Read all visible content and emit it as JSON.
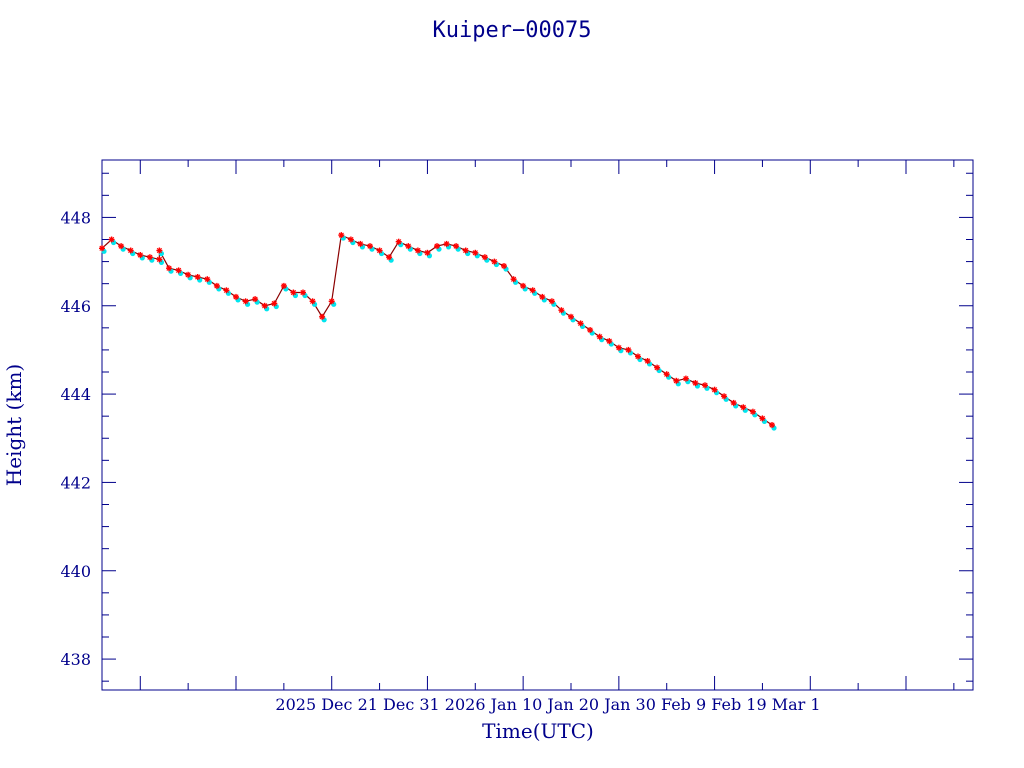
{
  "chart_data": {
    "type": "line",
    "title": "Kuiper−00075",
    "xlabel": "Time(UTC)",
    "ylabel": "Height (km)",
    "ylim": [
      437.3,
      449.3
    ],
    "xlim": [
      "2025-12-07",
      "2026-03-08"
    ],
    "y_ticks": [
      438,
      440,
      442,
      444,
      446,
      448
    ],
    "y_tick_labels": [
      "438",
      "440",
      "442",
      "444",
      "446",
      "448"
    ],
    "x_ticks": [
      "2025-12-11",
      "2025-12-21",
      "2025-12-31",
      "2026-01-10",
      "2026-01-20",
      "2026-01-30",
      "2026-02-09",
      "2026-02-19",
      "2026-03-01"
    ],
    "x_tick_labels": [
      "2025 Dec 21 Dec 31 2026 Jan 10 Jan 20 Jan 30 Feb 9 Feb 19 Mar 1"
    ],
    "grid": false,
    "colors": {
      "axis": "#00008b",
      "line": "#8b0000",
      "marker_primary": "#ff0000",
      "marker_secondary": "#00e5ee"
    },
    "series": [
      {
        "x": [
          "2025-12-07",
          "2025-12-08",
          "2025-12-09",
          "2025-12-10",
          "2025-12-11",
          "2025-12-12",
          "2025-12-13",
          "2025-12-13",
          "2025-12-14",
          "2025-12-15",
          "2025-12-16",
          "2025-12-17",
          "2025-12-18",
          "2025-12-19",
          "2025-12-20",
          "2025-12-21",
          "2025-12-22",
          "2025-12-23",
          "2025-12-24",
          "2025-12-25",
          "2025-12-26",
          "2025-12-27",
          "2025-12-28",
          "2025-12-29",
          "2025-12-30",
          "2025-12-31",
          "2026-01-01",
          "2026-01-02",
          "2026-01-03",
          "2026-01-04",
          "2026-01-05",
          "2026-01-06",
          "2026-01-07",
          "2026-01-08",
          "2026-01-09",
          "2026-01-10",
          "2026-01-11",
          "2026-01-12",
          "2026-01-13",
          "2026-01-14",
          "2026-01-15",
          "2026-01-16",
          "2026-01-17",
          "2026-01-18",
          "2026-01-19",
          "2026-01-20",
          "2026-01-21",
          "2026-01-22",
          "2026-01-23",
          "2026-01-24",
          "2026-01-25",
          "2026-01-26",
          "2026-01-27",
          "2026-01-28",
          "2026-01-29",
          "2026-01-30",
          "2026-01-31",
          "2026-02-01",
          "2026-02-02",
          "2026-02-03",
          "2026-02-04",
          "2026-02-05",
          "2026-02-06",
          "2026-02-07",
          "2026-02-08",
          "2026-02-09",
          "2026-02-10",
          "2026-02-11",
          "2026-02-12",
          "2026-02-13",
          "2026-02-14",
          "2026-02-15"
        ],
        "values": [
          447.3,
          447.5,
          447.35,
          447.25,
          447.15,
          447.1,
          447.05,
          447.25,
          446.85,
          446.8,
          446.7,
          446.65,
          446.6,
          446.45,
          446.35,
          446.2,
          446.1,
          446.15,
          446.0,
          446.05,
          446.45,
          446.3,
          446.3,
          446.1,
          445.75,
          446.1,
          447.6,
          447.5,
          447.4,
          447.35,
          447.25,
          447.1,
          447.45,
          447.35,
          447.25,
          447.2,
          447.35,
          447.4,
          447.35,
          447.25,
          447.2,
          447.1,
          447.0,
          446.9,
          446.6,
          446.45,
          446.35,
          446.2,
          446.1,
          445.9,
          445.75,
          445.6,
          445.45,
          445.3,
          445.2,
          445.05,
          445.0,
          444.85,
          444.75,
          444.6,
          444.45,
          444.3,
          444.35,
          444.25,
          444.2,
          444.1,
          443.95,
          443.8,
          443.7,
          443.6,
          443.45,
          443.3
        ]
      }
    ]
  }
}
